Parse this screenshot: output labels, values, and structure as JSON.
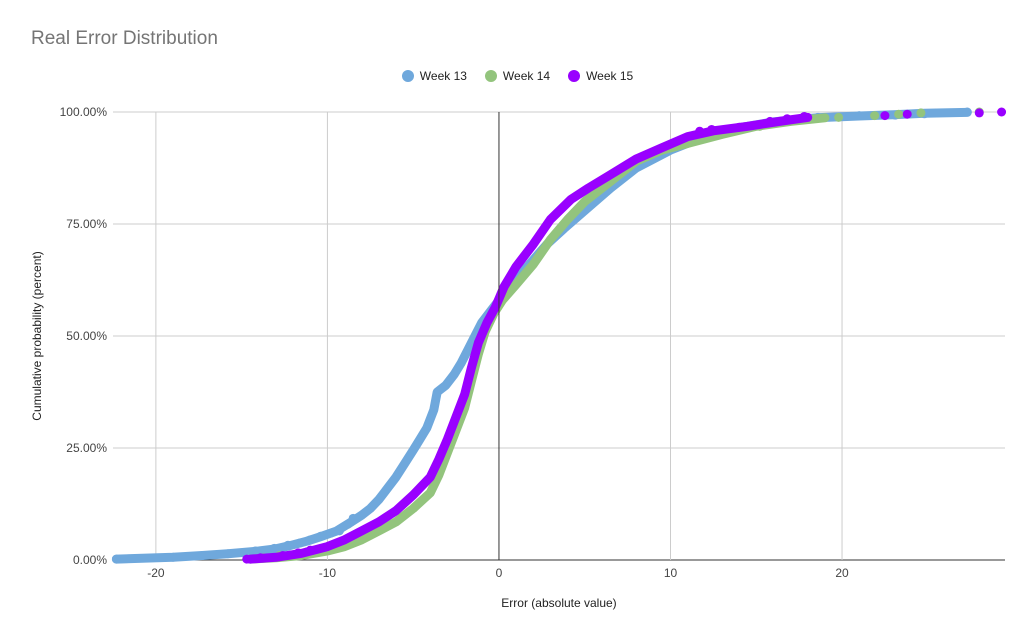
{
  "chart_data": {
    "type": "scatter",
    "title": "Real Error Distribution",
    "xlabel": "Error (absolute value)",
    "ylabel": "Cumulative probability (percent)",
    "xlim": [
      -22.5,
      29.5
    ],
    "ylim": [
      0,
      100
    ],
    "x_ticks": [
      -20,
      -10,
      0,
      10,
      20
    ],
    "x_tick_labels": [
      "-20",
      "-10",
      "0",
      "10",
      "20"
    ],
    "y_ticks": [
      0,
      25,
      50,
      75,
      100
    ],
    "y_tick_labels": [
      "0.00%",
      "25.00%",
      "50.00%",
      "75.00%",
      "100.00%"
    ],
    "grid": true,
    "legend_position": "top",
    "series": [
      {
        "name": "Week 13",
        "color": "#6fa8dc",
        "curve": [
          [
            -22.3,
            0.2
          ],
          [
            -19,
            0.6
          ],
          [
            -17.3,
            1
          ],
          [
            -15.8,
            1.4
          ],
          [
            -14,
            2
          ],
          [
            -13,
            2.5
          ],
          [
            -12.2,
            3.2
          ],
          [
            -11.2,
            4.2
          ],
          [
            -10.4,
            5.2
          ],
          [
            -9.5,
            6.4
          ],
          [
            -8.6,
            8.5
          ],
          [
            -8,
            10
          ],
          [
            -7.5,
            11.5
          ],
          [
            -7,
            13.5
          ],
          [
            -6.5,
            16
          ],
          [
            -6,
            18.5
          ],
          [
            -5.5,
            21.5
          ],
          [
            -5,
            24.5
          ],
          [
            -4.6,
            27
          ],
          [
            -4.2,
            29.5
          ],
          [
            -3.8,
            33.5
          ],
          [
            -3.6,
            37.5
          ],
          [
            -3.1,
            39
          ],
          [
            -2.6,
            41.5
          ],
          [
            -2.2,
            44
          ],
          [
            -1.8,
            47
          ],
          [
            -1.4,
            50
          ],
          [
            -1,
            53
          ],
          [
            -0.5,
            55.5
          ],
          [
            0,
            58
          ],
          [
            0.6,
            60.5
          ],
          [
            1.2,
            63.5
          ],
          [
            2,
            67
          ],
          [
            2.8,
            70.5
          ],
          [
            3.8,
            74
          ],
          [
            5,
            78
          ],
          [
            6.5,
            83
          ],
          [
            8,
            87.5
          ],
          [
            10,
            91.5
          ],
          [
            12,
            94.5
          ],
          [
            14,
            96.5
          ],
          [
            16,
            97.8
          ],
          [
            18.5,
            98.7
          ],
          [
            21,
            99.1
          ],
          [
            23,
            99.4
          ],
          [
            24.8,
            99.7
          ],
          [
            27.3,
            99.9
          ]
        ],
        "points": [
          [
            -22.3,
            0.2
          ],
          [
            -19,
            0.6
          ],
          [
            -17.3,
            1
          ],
          [
            -15.8,
            1.4
          ],
          [
            -14.2,
            2
          ],
          [
            -13.1,
            2.6
          ],
          [
            -12.3,
            3.3
          ],
          [
            -11.6,
            3.8
          ],
          [
            -11,
            4.5
          ],
          [
            -10.4,
            5.3
          ],
          [
            -9.8,
            6
          ],
          [
            -9.3,
            6.5
          ],
          [
            -8.8,
            8
          ],
          [
            -8.5,
            9.3
          ],
          [
            16.5,
            97.9
          ],
          [
            18.6,
            98.8
          ],
          [
            21,
            99.2
          ],
          [
            23.1,
            99.3
          ],
          [
            24.8,
            99.6
          ],
          [
            27.3,
            100
          ]
        ]
      },
      {
        "name": "Week 14",
        "color": "#93c47d",
        "curve": [
          [
            -14.5,
            0.2
          ],
          [
            -13,
            0.5
          ],
          [
            -11.5,
            1
          ],
          [
            -10,
            2
          ],
          [
            -9,
            3
          ],
          [
            -8,
            4.5
          ],
          [
            -7,
            6.5
          ],
          [
            -6,
            8.5
          ],
          [
            -5,
            11.5
          ],
          [
            -4,
            15
          ],
          [
            -3.5,
            19
          ],
          [
            -3,
            24
          ],
          [
            -2.5,
            29
          ],
          [
            -2,
            34
          ],
          [
            -1.6,
            40
          ],
          [
            -1.2,
            46
          ],
          [
            -0.8,
            51
          ],
          [
            -0.3,
            55
          ],
          [
            0.2,
            58
          ],
          [
            1,
            61.5
          ],
          [
            2,
            66
          ],
          [
            3,
            71.5
          ],
          [
            4,
            76
          ],
          [
            5,
            80
          ],
          [
            6.5,
            84.5
          ],
          [
            8,
            89
          ],
          [
            9.5,
            91.5
          ],
          [
            11,
            93
          ],
          [
            13,
            95
          ],
          [
            15,
            96.8
          ],
          [
            17,
            97.9
          ],
          [
            19,
            98.7
          ]
        ],
        "points": [
          [
            -14.5,
            0.2
          ],
          [
            -13.7,
            0.5
          ],
          [
            -12.8,
            1
          ],
          [
            -11.2,
            1.8
          ],
          [
            13.5,
            95.6
          ],
          [
            15.2,
            96.8
          ],
          [
            17.3,
            98.1
          ],
          [
            19.8,
            98.8
          ],
          [
            21.9,
            99.2
          ],
          [
            23.3,
            99.5
          ],
          [
            24.6,
            99.8
          ],
          [
            28,
            100
          ]
        ]
      },
      {
        "name": "Week 15",
        "color": "#9900ff",
        "curve": [
          [
            -14.5,
            0.2
          ],
          [
            -13,
            0.6
          ],
          [
            -11.5,
            1.5
          ],
          [
            -10,
            3
          ],
          [
            -9,
            4.5
          ],
          [
            -8,
            6.5
          ],
          [
            -7,
            8.5
          ],
          [
            -6,
            11
          ],
          [
            -5,
            14.5
          ],
          [
            -4,
            18.5
          ],
          [
            -3.5,
            22.5
          ],
          [
            -3,
            27
          ],
          [
            -2.5,
            32
          ],
          [
            -2,
            37
          ],
          [
            -1.6,
            43
          ],
          [
            -1.2,
            48.5
          ],
          [
            -0.7,
            53
          ],
          [
            -0.2,
            56.5
          ],
          [
            0.3,
            61
          ],
          [
            1,
            65.5
          ],
          [
            2,
            70.5
          ],
          [
            3,
            76
          ],
          [
            4.2,
            80.5
          ],
          [
            5.2,
            83
          ],
          [
            6.5,
            86
          ],
          [
            8,
            89.5
          ],
          [
            9.5,
            92
          ],
          [
            11,
            94.5
          ],
          [
            12.5,
            95.8
          ],
          [
            14.5,
            96.8
          ],
          [
            16.5,
            98
          ],
          [
            18,
            98.8
          ]
        ],
        "points": [
          [
            -14.7,
            0.2
          ],
          [
            -13.9,
            0.5
          ],
          [
            -12.6,
            1
          ],
          [
            -11.7,
            1.6
          ],
          [
            -11,
            2.2
          ],
          [
            11.7,
            95.7
          ],
          [
            12.4,
            96.1
          ],
          [
            14,
            96.6
          ],
          [
            15.8,
            97.9
          ],
          [
            16.8,
            98.5
          ],
          [
            17.8,
            99
          ],
          [
            22.5,
            99.2
          ],
          [
            23.8,
            99.5
          ],
          [
            28,
            99.8
          ],
          [
            29.3,
            100
          ]
        ]
      }
    ]
  }
}
